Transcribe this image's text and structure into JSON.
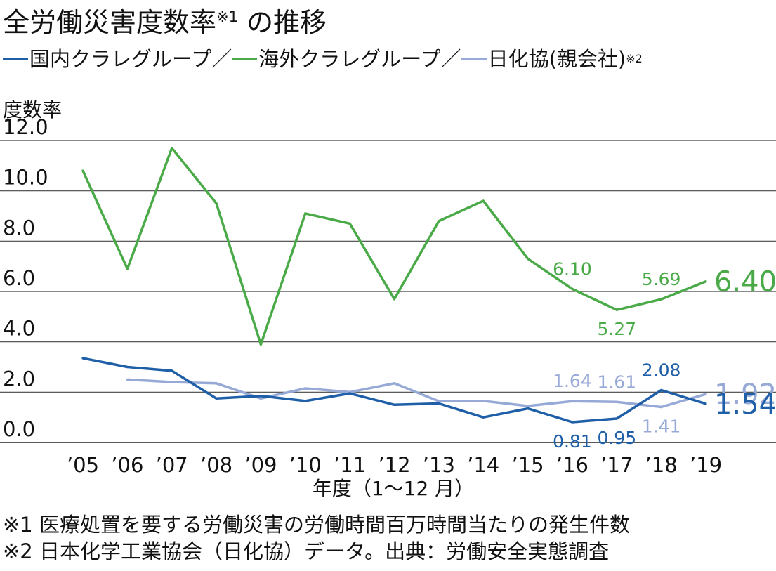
{
  "title": {
    "text": "全労働災害度数率",
    "sup": "※1",
    "suffix": " の推移"
  },
  "legend": {
    "items": [
      {
        "label": "国内クラレグループ",
        "color": "#1f5fa8"
      },
      {
        "label": "海外クラレグループ",
        "color": "#4aaa48"
      },
      {
        "label": "日化協(親会社)",
        "color": "#97a9d6"
      }
    ],
    "separator": "／",
    "sup": "※2"
  },
  "chart_data": {
    "type": "line",
    "ylabel": "度数率",
    "xlabel": "年度（1～12 月）",
    "ylim": [
      0,
      12
    ],
    "yticks": [
      "0.0",
      "2.0",
      "4.0",
      "6.0",
      "8.0",
      "10.0",
      "12.0"
    ],
    "grid": true,
    "categories": [
      "’05",
      "’06",
      "’07",
      "’08",
      "’09",
      "’10",
      "’11",
      "’12",
      "’13",
      "’14",
      "’15",
      "’16",
      "’17",
      "’18",
      "’19"
    ],
    "series": [
      {
        "name": "海外クラレグループ",
        "color": "#4aaa48",
        "values": [
          10.8,
          6.9,
          11.7,
          9.5,
          3.9,
          9.1,
          8.7,
          5.7,
          8.8,
          9.6,
          7.3,
          6.1,
          5.27,
          5.69,
          6.4
        ],
        "labels": [
          {
            "index": 11,
            "text": "6.10",
            "pos": "above"
          },
          {
            "index": 12,
            "text": "5.27",
            "pos": "below"
          },
          {
            "index": 13,
            "text": "5.69",
            "pos": "above"
          },
          {
            "index": 14,
            "text": "6.40",
            "pos": "end"
          }
        ]
      },
      {
        "name": "日化協(親会社)",
        "color": "#97a9d6",
        "values": [
          null,
          2.5,
          2.4,
          2.35,
          1.75,
          2.15,
          2.0,
          2.35,
          1.64,
          1.65,
          1.45,
          1.64,
          1.61,
          1.41,
          1.92
        ],
        "labels": [
          {
            "index": 11,
            "text": "1.64",
            "pos": "above"
          },
          {
            "index": 12,
            "text": "1.61",
            "pos": "above"
          },
          {
            "index": 13,
            "text": "1.41",
            "pos": "below"
          },
          {
            "index": 14,
            "text": "1.92",
            "pos": "end"
          }
        ]
      },
      {
        "name": "国内クラレグループ",
        "color": "#1f5fa8",
        "values": [
          3.35,
          3.0,
          2.85,
          1.75,
          1.85,
          1.65,
          1.95,
          1.5,
          1.55,
          1.0,
          1.35,
          0.81,
          0.95,
          2.08,
          1.54
        ],
        "labels": [
          {
            "index": 11,
            "text": "0.81",
            "pos": "below"
          },
          {
            "index": 12,
            "text": "0.95",
            "pos": "below"
          },
          {
            "index": 13,
            "text": "2.08",
            "pos": "above"
          },
          {
            "index": 14,
            "text": "1.54",
            "pos": "end"
          }
        ]
      }
    ]
  },
  "footnotes": [
    "※1 医療処置を要する労働災害の労働時間百万時間当たりの発生件数",
    "※2 日本化学工業協会（日化協）データ。出典：労働安全実態調査"
  ]
}
